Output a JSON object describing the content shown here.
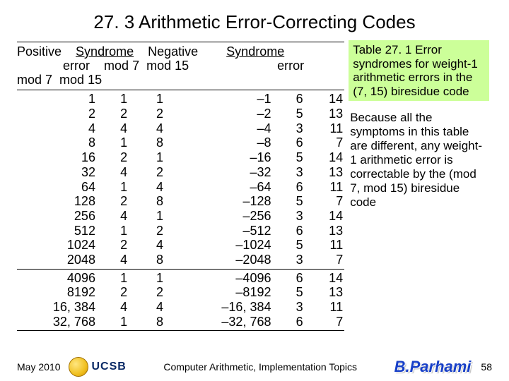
{
  "title": "27. 3  Arithmetic Error-Correcting Codes",
  "header": {
    "positive": "Positive",
    "syndrome1": "Syndrome",
    "negative": "Negative",
    "syndrome2": "Syndrome",
    "error1": "error",
    "m7a": "mod 7",
    "m15a": "mod 15",
    "error2": "error",
    "m7b": "mod 7",
    "m15b": "mod 15"
  },
  "rows_top": [
    {
      "p": "1",
      "s7": "1",
      "s15": "1",
      "n": "–1",
      "n7": "6",
      "n15": "14"
    },
    {
      "p": "2",
      "s7": "2",
      "s15": "2",
      "n": "–2",
      "n7": "5",
      "n15": "13"
    },
    {
      "p": "4",
      "s7": "4",
      "s15": "4",
      "n": "–4",
      "n7": "3",
      "n15": "11"
    },
    {
      "p": "8",
      "s7": "1",
      "s15": "8",
      "n": "–8",
      "n7": "6",
      "n15": "7"
    },
    {
      "p": "16",
      "s7": "2",
      "s15": "1",
      "n": "–16",
      "n7": "5",
      "n15": "14"
    },
    {
      "p": "32",
      "s7": "4",
      "s15": "2",
      "n": "–32",
      "n7": "3",
      "n15": "13"
    },
    {
      "p": "64",
      "s7": "1",
      "s15": "4",
      "n": "–64",
      "n7": "6",
      "n15": "11"
    },
    {
      "p": "128",
      "s7": "2",
      "s15": "8",
      "n": "–128",
      "n7": "5",
      "n15": "7"
    },
    {
      "p": "256",
      "s7": "4",
      "s15": "1",
      "n": "–256",
      "n7": "3",
      "n15": "14"
    },
    {
      "p": "512",
      "s7": "1",
      "s15": "2",
      "n": "–512",
      "n7": "6",
      "n15": "13"
    },
    {
      "p": "1024",
      "s7": "2",
      "s15": "4",
      "n": "–1024",
      "n7": "5",
      "n15": "11"
    },
    {
      "p": "2048",
      "s7": "4",
      "s15": "8",
      "n": "–2048",
      "n7": "3",
      "n15": "7"
    }
  ],
  "rows_bottom": [
    {
      "p": "4096",
      "s7": "1",
      "s15": "1",
      "n": "–4096",
      "n7": "6",
      "n15": "14"
    },
    {
      "p": "8192",
      "s7": "2",
      "s15": "2",
      "n": "–8192",
      "n7": "5",
      "n15": "13"
    },
    {
      "p": "16, 384",
      "s7": "4",
      "s15": "4",
      "n": "–16, 384",
      "n7": "3",
      "n15": "11"
    },
    {
      "p": "32, 768",
      "s7": "1",
      "s15": "8",
      "n": "–32, 768",
      "n7": "6",
      "n15": "7"
    }
  ],
  "caption": "Table 27. 1 Error syndromes for weight-1 arithmetic errors in the (7, 15) biresidue code",
  "explain": "Because all the symptoms in this table are different, any weight-1 arithmetic error is correctable by the (mod 7, mod 15) biresidue code",
  "footer": {
    "date": "May 2010",
    "ucsb": "UCSB",
    "center": "Computer Arithmetic, Implementation Topics",
    "brand": "B.Parhami",
    "page": "58"
  },
  "cols_pct": [
    20,
    8,
    9,
    27,
    8,
    10
  ]
}
